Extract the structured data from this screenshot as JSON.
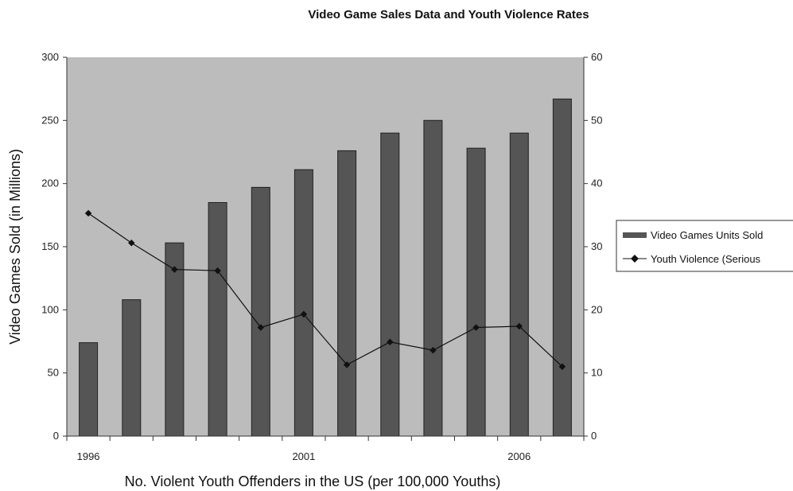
{
  "chart_data": {
    "type": "bar",
    "title": "Video Game Sales Data and Youth Violence Rates",
    "xlabel": "No. Violent Youth Offenders in the US (per 100,000 Youths)",
    "ylabel": "Video Games Sold (in Millions)",
    "x": [
      1996,
      1997,
      1998,
      1999,
      2000,
      2001,
      2002,
      2003,
      2004,
      2005,
      2006,
      2007
    ],
    "x_tick_labels": [
      "1996",
      "2001",
      "2006"
    ],
    "ylim": [
      0,
      300
    ],
    "y_ticks": [
      "0",
      "50",
      "100",
      "150",
      "200",
      "250",
      "300"
    ],
    "y2lim": [
      0,
      60
    ],
    "y2_ticks": [
      "0",
      "10",
      "20",
      "30",
      "40",
      "50",
      "60"
    ],
    "grid": false,
    "legend_position": "right",
    "series": [
      {
        "name": "Video Games Units Sold",
        "type": "bar",
        "axis": "left",
        "color": "#555555",
        "values": [
          74,
          108,
          153,
          185,
          197,
          211,
          226,
          240,
          250,
          228,
          240,
          267
        ]
      },
      {
        "name": "Youth Violence (Serious",
        "type": "line",
        "axis": "right",
        "marker": "diamond",
        "color": "#111111",
        "values": [
          35.3,
          30.6,
          26.4,
          26.2,
          17.2,
          19.3,
          11.3,
          14.9,
          13.6,
          17.2,
          17.4,
          11.0
        ]
      }
    ]
  }
}
